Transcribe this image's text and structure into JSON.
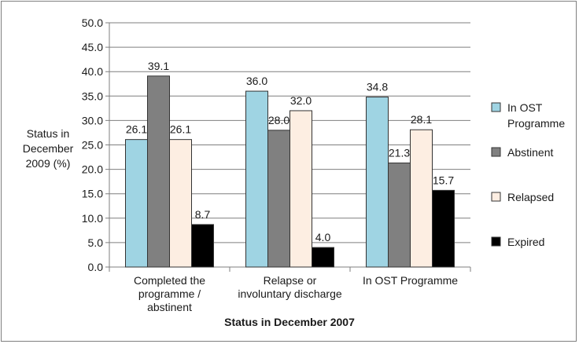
{
  "chart_data": {
    "type": "bar",
    "title": "",
    "xlabel": "Status in December 2007",
    "ylabel": [
      "Status in",
      "December",
      "2009 (%)"
    ],
    "ylim": [
      0,
      50
    ],
    "ytick_step": 5,
    "ytick_labels": [
      "0.0",
      "5.0",
      "10.0",
      "15.0",
      "20.0",
      "25.0",
      "30.0",
      "35.0",
      "40.0",
      "45.0",
      "50.0"
    ],
    "grid": true,
    "legend_position": "right",
    "categories": [
      [
        "Completed the",
        "programme /",
        "abstinent"
      ],
      [
        "Relapse or",
        "involuntary discharge"
      ],
      [
        "In OST Programme"
      ]
    ],
    "series": [
      {
        "name": [
          "In OST",
          "Programme"
        ],
        "color": "#9fd4e3",
        "values": [
          26.1,
          36.0,
          34.8
        ],
        "labels": [
          "26.1",
          "36.0",
          "34.8"
        ]
      },
      {
        "name": [
          "Abstinent"
        ],
        "color": "#808080",
        "values": [
          39.1,
          28.0,
          21.3
        ],
        "labels": [
          "39.1",
          "28.0",
          "21.3"
        ]
      },
      {
        "name": [
          "Relapsed"
        ],
        "color": "#fdeee2",
        "values": [
          26.1,
          32.0,
          28.1
        ],
        "labels": [
          "26.1",
          "32.0",
          "28.1"
        ]
      },
      {
        "name": [
          "Expired"
        ],
        "color": "#000000",
        "values": [
          8.7,
          4.0,
          15.7
        ],
        "labels": [
          "8.7",
          "4.0",
          "15.7"
        ]
      }
    ]
  }
}
